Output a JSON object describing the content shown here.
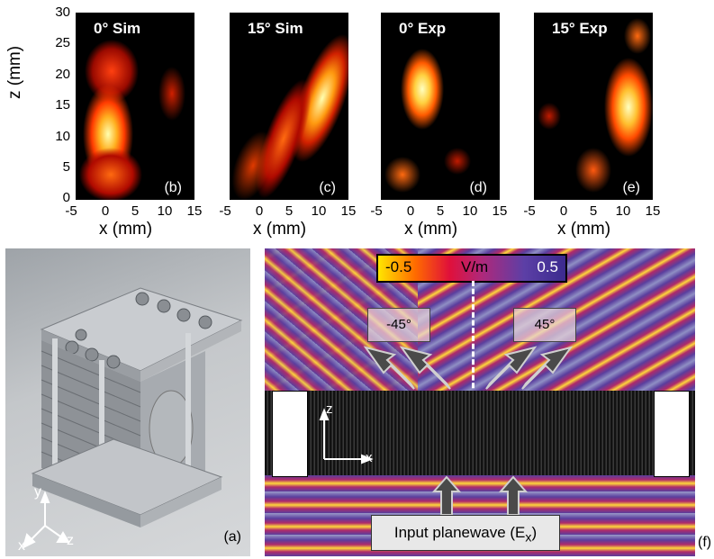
{
  "heatmaps": {
    "panels": [
      {
        "title": "0° Sim",
        "tag": "(b)"
      },
      {
        "title": "15° Sim",
        "tag": "(c)"
      },
      {
        "title": "0° Exp",
        "tag": "(d)"
      },
      {
        "title": "15° Exp",
        "tag": "(e)"
      }
    ],
    "y_label": "z (mm)",
    "y_ticks": [
      "30",
      "25",
      "20",
      "15",
      "10",
      "5",
      "0"
    ],
    "x_label": "x (mm)",
    "x_ticks": [
      "-5",
      "0",
      "5",
      "10",
      "15"
    ]
  },
  "photo": {
    "tag": "(a)",
    "axis_y": "y",
    "axis_x": "x",
    "axis_z": "z"
  },
  "field_panel": {
    "colorbar_min": "-0.5",
    "colorbar_unit": "V/m",
    "colorbar_max": "0.5",
    "angle_left": "-45°",
    "angle_right": "45°",
    "axis_z": "z",
    "axis_x": "x",
    "input_label": "Input planewave (E",
    "input_sub": "x",
    "input_close": ")",
    "tag": "(f)"
  },
  "colors": {
    "hot_core": "#ffffc0",
    "hot_mid": "#ff4a10",
    "background": "#000000"
  }
}
